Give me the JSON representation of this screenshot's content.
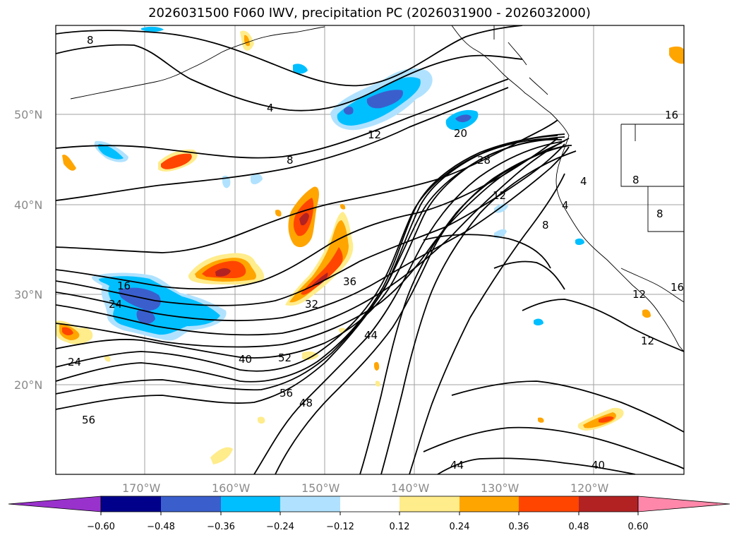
{
  "title": "2026031500 F060 IWV, precipitation PC (2026031900 - 2026032000)",
  "map": {
    "lon_labels": [
      "170°W",
      "160°W",
      "150°W",
      "140°W",
      "130°W",
      "120°W"
    ],
    "lat_labels": [
      "50°N",
      "40°N",
      "30°N",
      "20°N"
    ],
    "contour_labels": [
      "8",
      "4",
      "8",
      "12",
      "20",
      "28",
      "12",
      "8",
      "4",
      "16",
      "24",
      "32",
      "36",
      "44",
      "40",
      "52",
      "56",
      "48",
      "56",
      "44",
      "40",
      "12",
      "16",
      "24",
      "8",
      "12",
      "4",
      "8",
      "16"
    ]
  },
  "colorbar": {
    "tick_labels": [
      "−0.60",
      "−0.48",
      "−0.36",
      "−0.24",
      "−0.12",
      "0.12",
      "0.24",
      "0.36",
      "0.48",
      "0.60"
    ],
    "colors": [
      "#9932cc",
      "#00008b",
      "#3a5fcd",
      "#00bfff",
      "#b0e2ff",
      "#ffffff",
      "#ffec8b",
      "#ffa500",
      "#ff4500",
      "#b22222",
      "#ff88aa"
    ]
  }
}
